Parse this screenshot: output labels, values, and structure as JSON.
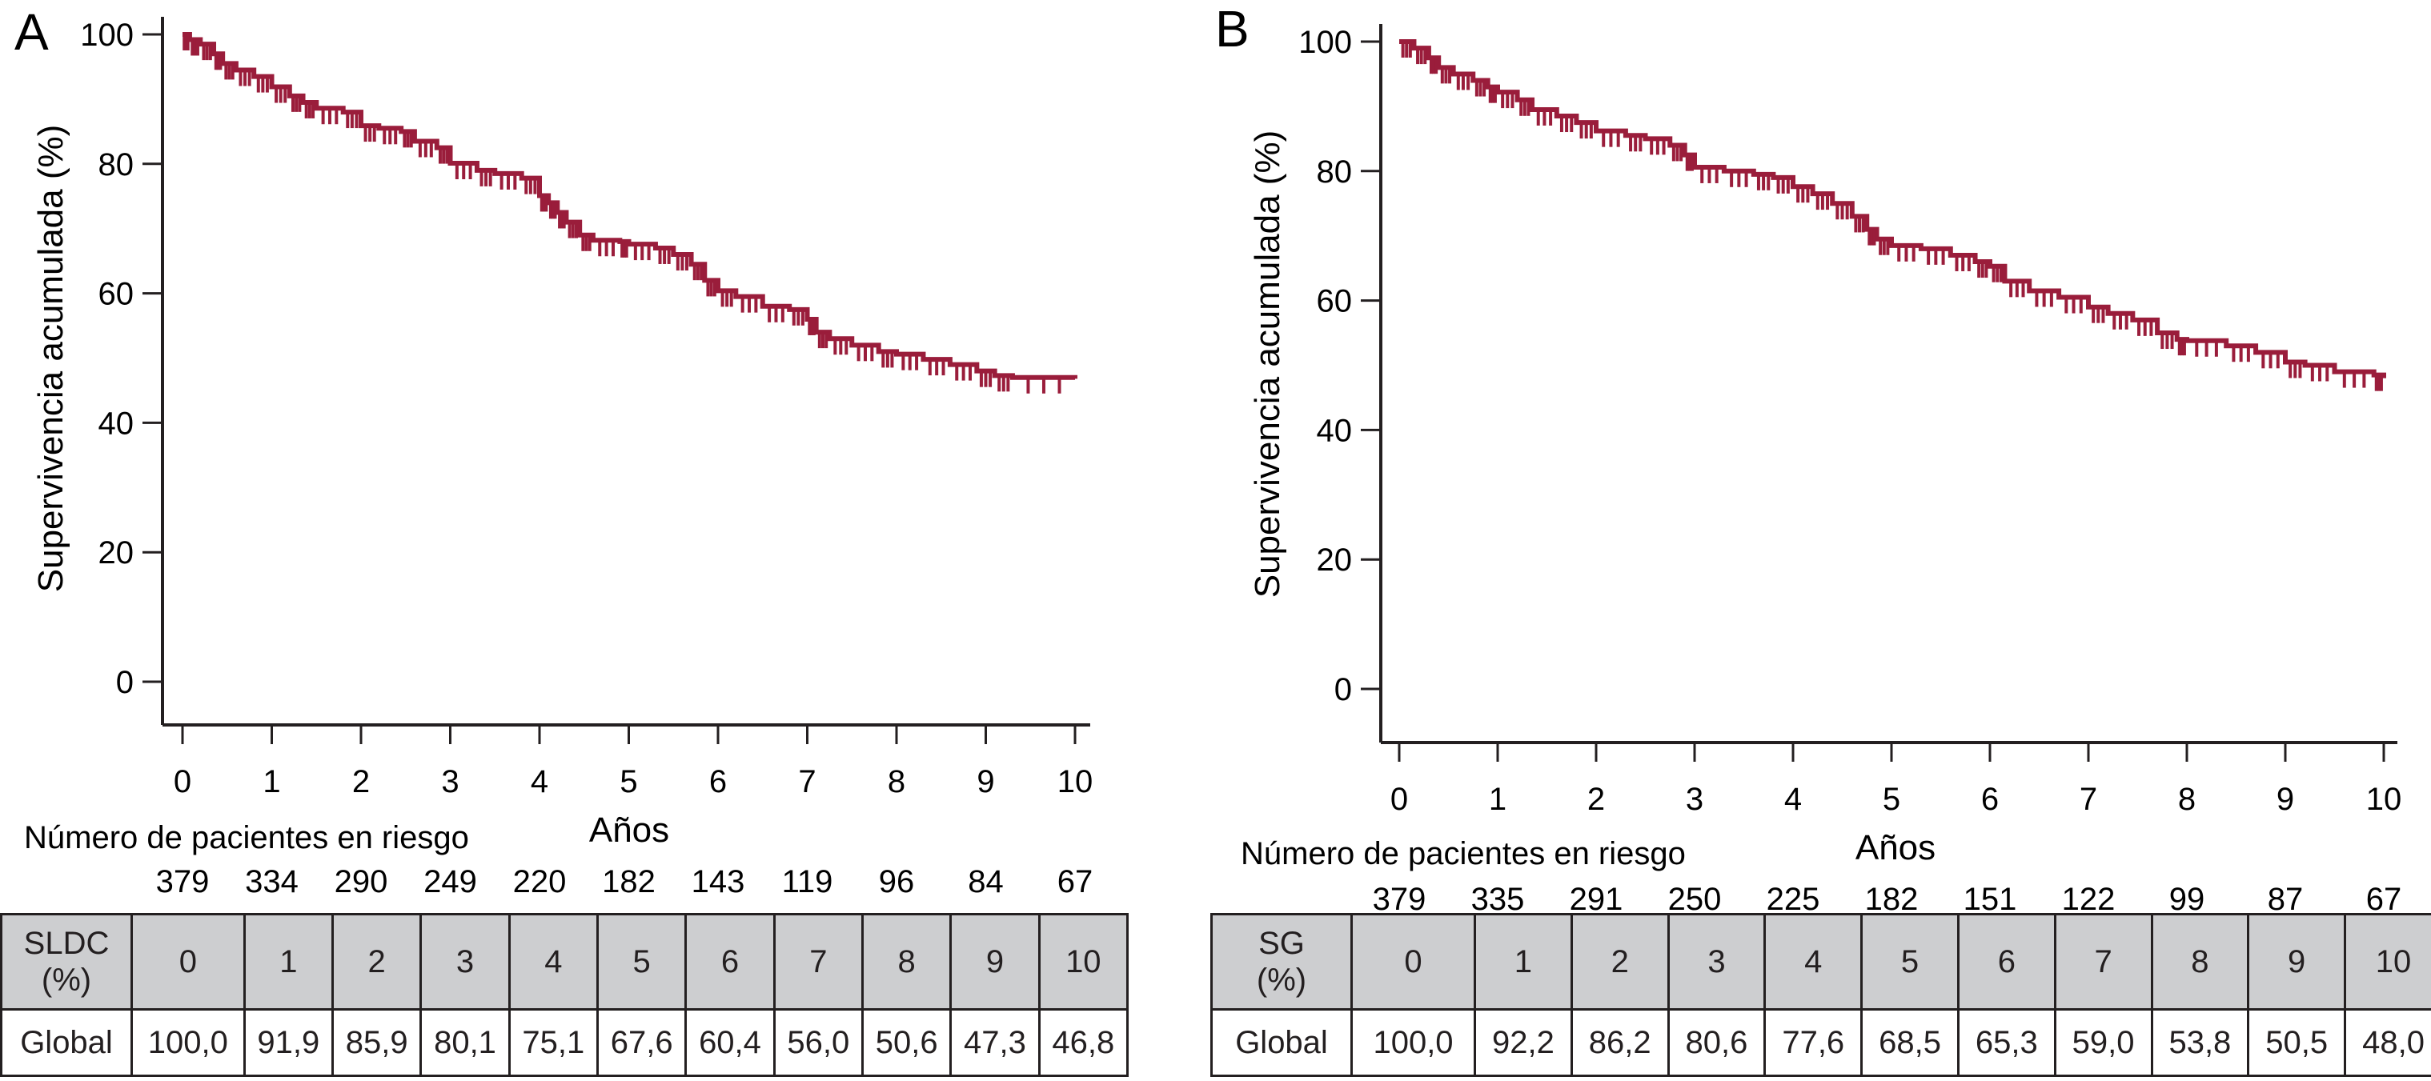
{
  "chart_data": [
    {
      "type": "line",
      "subtype": "kaplan-meier-step",
      "panel_label": "A",
      "title": "",
      "xlabel": "Años",
      "ylabel": "Supervivencia acumulada (%)",
      "xlim": [
        0,
        10
      ],
      "ylim": [
        0,
        100
      ],
      "x_ticks": [
        "0",
        "1",
        "2",
        "3",
        "4",
        "5",
        "6",
        "7",
        "8",
        "9",
        "10"
      ],
      "y_ticks": [
        "0",
        "20",
        "40",
        "60",
        "80",
        "100"
      ],
      "grid": false,
      "color": "#9a1d3b",
      "series": [
        {
          "name": "SLDC Global",
          "x": [
            0,
            0.08,
            0.2,
            0.35,
            0.45,
            0.6,
            0.8,
            1.0,
            1.2,
            1.35,
            1.5,
            1.8,
            2.0,
            2.2,
            2.45,
            2.6,
            2.85,
            3.0,
            3.3,
            3.5,
            3.8,
            4.0,
            4.1,
            4.2,
            4.3,
            4.45,
            4.6,
            4.9,
            5.0,
            5.3,
            5.5,
            5.7,
            5.85,
            6.0,
            6.2,
            6.5,
            6.8,
            7.0,
            7.1,
            7.25,
            7.5,
            7.8,
            8.0,
            8.3,
            8.6,
            8.9,
            9.1,
            9.3,
            10.0
          ],
          "y": [
            100,
            99.2,
            98.5,
            97,
            95.5,
            94.5,
            93.5,
            91.9,
            90.5,
            89.5,
            88.6,
            88.0,
            85.9,
            85.5,
            85.0,
            83.5,
            82.5,
            80.1,
            79.0,
            78.5,
            77.8,
            75.1,
            74.0,
            72.5,
            71.0,
            69.0,
            68.2,
            68.0,
            67.6,
            67.0,
            66.0,
            64.5,
            62.0,
            60.4,
            59.5,
            58.0,
            57.5,
            56.0,
            54.0,
            53.0,
            52.0,
            51.0,
            50.6,
            49.8,
            49.0,
            48.0,
            47.3,
            47.0,
            46.8
          ],
          "table_values": [
            "100,0",
            "91,9",
            "85,9",
            "80,1",
            "75,1",
            "67,6",
            "60,4",
            "56,0",
            "50,6",
            "47,3",
            "46,8"
          ]
        }
      ]
    },
    {
      "type": "line",
      "subtype": "kaplan-meier-step",
      "panel_label": "B",
      "title": "",
      "xlabel": "Años",
      "ylabel": "Supervivencia acumulada (%)",
      "xlim": [
        0,
        10
      ],
      "ylim": [
        0,
        100
      ],
      "x_ticks": [
        "0",
        "1",
        "2",
        "3",
        "4",
        "5",
        "6",
        "7",
        "8",
        "9",
        "10"
      ],
      "y_ticks": [
        "0",
        "20",
        "40",
        "60",
        "80",
        "100"
      ],
      "grid": false,
      "color": "#9a1d3b",
      "series": [
        {
          "name": "SG Global",
          "x": [
            0,
            0.15,
            0.3,
            0.4,
            0.55,
            0.75,
            0.9,
            1.0,
            1.2,
            1.35,
            1.6,
            1.8,
            2.0,
            2.3,
            2.5,
            2.75,
            2.9,
            3.0,
            3.3,
            3.6,
            3.8,
            4.0,
            4.2,
            4.4,
            4.6,
            4.75,
            4.85,
            5.0,
            5.3,
            5.6,
            5.85,
            6.0,
            6.15,
            6.4,
            6.7,
            7.0,
            7.2,
            7.45,
            7.7,
            7.9,
            8.0,
            8.4,
            8.7,
            9.0,
            9.2,
            9.5,
            9.9,
            10.0
          ],
          "y": [
            100,
            99,
            97.5,
            96,
            95,
            94,
            93,
            92.2,
            91,
            89.5,
            88.5,
            87.5,
            86.2,
            85.5,
            85.0,
            84.0,
            82.5,
            80.6,
            80.0,
            79.5,
            79.0,
            77.6,
            76.5,
            75.0,
            73.0,
            71.0,
            69.5,
            68.5,
            68.0,
            67.0,
            66.0,
            65.3,
            63.0,
            61.5,
            60.5,
            59.0,
            58.0,
            57.0,
            55.0,
            54.0,
            53.8,
            53.0,
            52.0,
            50.5,
            50.0,
            49.0,
            48.5,
            48.0
          ],
          "table_values": [
            "100,0",
            "92,2",
            "86,2",
            "80,6",
            "77,6",
            "68,5",
            "65,3",
            "59,0",
            "53,8",
            "50,5",
            "48,0"
          ]
        }
      ]
    }
  ],
  "panels": [
    {
      "letter": "A",
      "ylabel": "Supervivencia acumulada (%)",
      "xlabel": "Años",
      "risk_title": "Número de pacientes en riesgo",
      "at_risk": [
        "379",
        "334",
        "290",
        "249",
        "220",
        "182",
        "143",
        "119",
        "96",
        "84",
        "67"
      ],
      "table": {
        "header_label_line1": "SLDC",
        "header_label_line2": "(%)",
        "years": [
          "0",
          "1",
          "2",
          "3",
          "4",
          "5",
          "6",
          "7",
          "8",
          "9",
          "10"
        ],
        "row_label": "Global",
        "values": [
          "100,0",
          "91,9",
          "85,9",
          "80,1",
          "75,1",
          "67,6",
          "60,4",
          "56,0",
          "50,6",
          "47,3",
          "46,8"
        ]
      }
    },
    {
      "letter": "B",
      "ylabel": "Supervivencia acumulada (%)",
      "xlabel": "Años",
      "risk_title": "Número de pacientes en riesgo",
      "at_risk": [
        "379",
        "335",
        "291",
        "250",
        "225",
        "182",
        "151",
        "122",
        "99",
        "87",
        "67"
      ],
      "table": {
        "header_label_line1": "SG",
        "header_label_line2": "(%)",
        "years": [
          "0",
          "1",
          "2",
          "3",
          "4",
          "5",
          "6",
          "7",
          "8",
          "9",
          "10"
        ],
        "row_label": "Global",
        "values": [
          "100,0",
          "92,2",
          "86,2",
          "80,6",
          "77,6",
          "68,5",
          "65,3",
          "59,0",
          "53,8",
          "50,5",
          "48,0"
        ]
      }
    }
  ]
}
